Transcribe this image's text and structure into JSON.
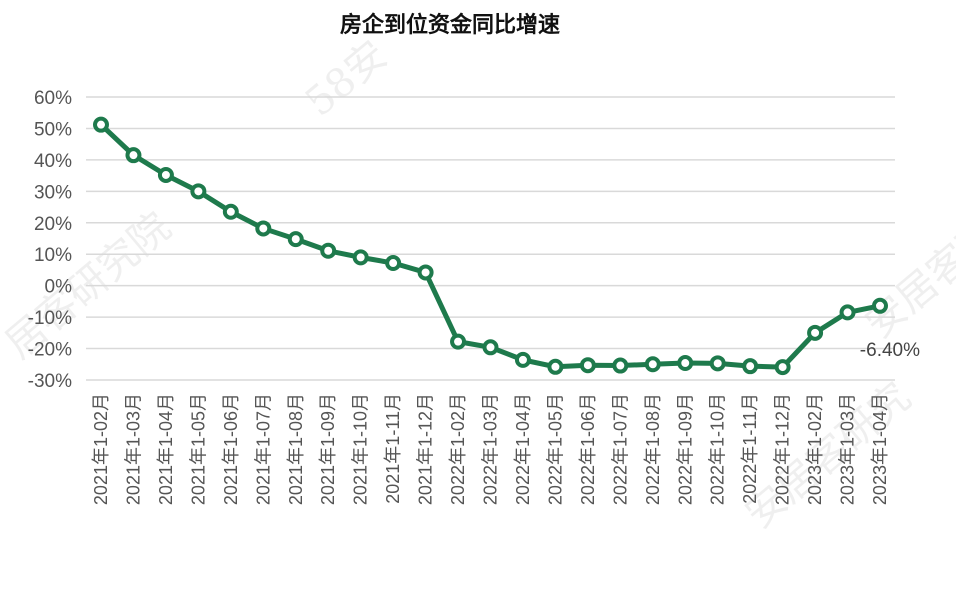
{
  "chart_data": {
    "type": "line",
    "title": "房企到位资金同比增速",
    "xlabel": "",
    "ylabel": "",
    "ylim": [
      -30,
      60
    ],
    "yticks": [
      60,
      50,
      40,
      30,
      20,
      10,
      0,
      -10,
      -20,
      -30
    ],
    "ytick_suffix": "%",
    "grid": true,
    "categories": [
      "2021年1-02月",
      "2021年1-03月",
      "2021年1-04月",
      "2021年1-05月",
      "2021年1-06月",
      "2021年1-07月",
      "2021年1-08月",
      "2021年1-09月",
      "2021年1-10月",
      "2021年1-11月",
      "2021年1-12月",
      "2022年1-02月",
      "2022年1-03月",
      "2022年1-04月",
      "2022年1-05月",
      "2022年1-06月",
      "2022年1-07月",
      "2022年1-08月",
      "2022年1-09月",
      "2022年1-10月",
      "2022年1-11月",
      "2022年1-12月",
      "2023年1-02月",
      "2023年1-03月",
      "2023年1-04月"
    ],
    "series": [
      {
        "values": [
          51.2,
          41.5,
          35.2,
          30.0,
          23.5,
          18.2,
          14.8,
          11.1,
          9.0,
          7.2,
          4.2,
          -17.8,
          -19.6,
          -23.6,
          -25.8,
          -25.3,
          -25.4,
          -25.0,
          -24.6,
          -24.7,
          -25.6,
          -25.9,
          -15.0,
          -8.5,
          -6.4
        ],
        "color": "#1e7a4c"
      }
    ],
    "data_labels": [
      {
        "index": 24,
        "text": "-6.40%"
      }
    ]
  },
  "watermark": {
    "text1": "58安",
    "text2": "居客研究院",
    "text3": "安居客研究",
    "text4": "安居客研"
  }
}
